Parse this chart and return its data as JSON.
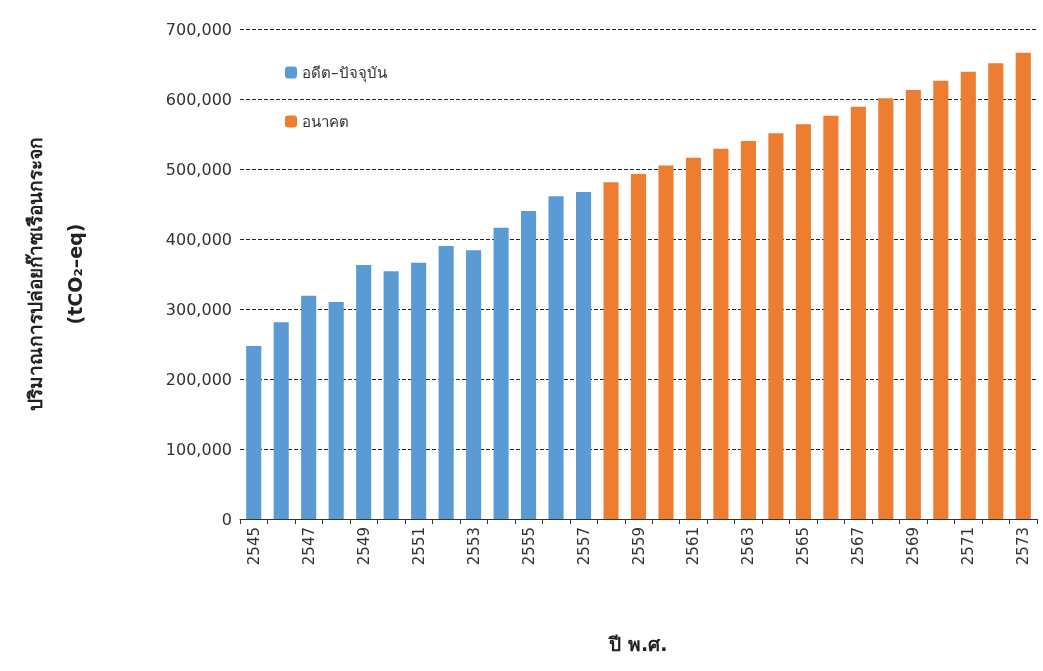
{
  "chart_data": {
    "type": "bar",
    "stacked": true,
    "xlabel": "ปี พ.ศ.",
    "ylabel": "ปริมาณการปล่อยก๊าซเรือนกระจก\n(tCO₂–eq)",
    "categories": [
      "2545",
      null,
      "2547",
      null,
      "2549",
      null,
      "2551",
      null,
      "2553",
      null,
      "2555",
      null,
      "2557",
      null,
      "2559",
      null,
      "2561",
      null,
      "2563",
      null,
      "2565",
      null,
      "2567",
      null,
      "2569",
      null,
      "2571",
      null,
      "2573"
    ],
    "series": [
      {
        "name": "อดีต–ปัจจุบัน",
        "color": "#5b9bd5",
        "values": [
          247000,
          281000,
          319000,
          310000,
          363000,
          354000,
          366000,
          390000,
          384000,
          416000,
          440000,
          461000,
          467000,
          null,
          null,
          null,
          null,
          null,
          null,
          null,
          null,
          null,
          null,
          null,
          null,
          null,
          null,
          null,
          null
        ]
      },
      {
        "name": "อนาคต",
        "color": "#ed7d31",
        "values": [
          null,
          null,
          null,
          null,
          null,
          null,
          null,
          null,
          null,
          null,
          null,
          null,
          null,
          481000,
          493000,
          505000,
          516000,
          529000,
          540000,
          551000,
          564000,
          576000,
          589000,
          601000,
          613000,
          626000,
          639000,
          651000,
          666000
        ]
      }
    ],
    "ylim": [
      0,
      700000
    ],
    "yticks": [
      0,
      {
        "value": 100000,
        "label": "100,000"
      },
      {
        "value": 200000,
        "label": "200,000"
      },
      {
        "value": 300000,
        "label": "300,000"
      },
      {
        "value": 400000,
        "label": "400,000"
      },
      {
        "value": 500000,
        "label": "500,000"
      },
      {
        "value": 600000,
        "label": "600,000"
      },
      {
        "value": 700000,
        "label": "700,000"
      }
    ],
    "grid": "y",
    "legend": "top left"
  }
}
